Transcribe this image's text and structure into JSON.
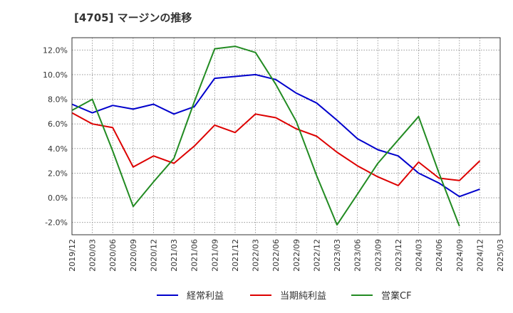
{
  "chart_data": {
    "type": "line",
    "title": "[4705]  マージンの推移",
    "x": [
      "2019/12",
      "2020/03",
      "2020/06",
      "2020/09",
      "2020/12",
      "2021/03",
      "2021/06",
      "2021/09",
      "2021/12",
      "2022/03",
      "2022/06",
      "2022/09",
      "2022/12",
      "2023/03",
      "2023/06",
      "2023/09",
      "2023/12",
      "2024/03",
      "2024/06",
      "2024/09",
      "2024/12",
      "2025/03"
    ],
    "ylim": [
      -3.0,
      13.0
    ],
    "yticks": [
      -2.0,
      0.0,
      2.0,
      4.0,
      6.0,
      8.0,
      10.0,
      12.0
    ],
    "ytick_labels": [
      "-2.0%",
      "0.0%",
      "2.0%",
      "4.0%",
      "6.0%",
      "8.0%",
      "10.0%",
      "12.0%"
    ],
    "grid": true,
    "legend_position": "bottom",
    "series": [
      {
        "name": "経常利益",
        "color": "#0000cc",
        "values": [
          7.6,
          6.9,
          7.5,
          7.2,
          7.6,
          6.8,
          7.4,
          9.7,
          9.85,
          10.0,
          9.6,
          8.5,
          7.7,
          6.3,
          4.8,
          3.9,
          3.4,
          2.0,
          1.2,
          0.1,
          0.7,
          null
        ]
      },
      {
        "name": "当期純利益",
        "color": "#dd0000",
        "values": [
          6.9,
          6.0,
          5.7,
          2.5,
          3.4,
          2.8,
          4.2,
          5.9,
          5.3,
          6.8,
          6.5,
          5.6,
          5.0,
          3.7,
          2.6,
          1.7,
          1.0,
          2.9,
          1.6,
          1.4,
          3.0,
          null
        ]
      },
      {
        "name": "営業CF",
        "color": "#228b22",
        "values": [
          7.1,
          8.0,
          3.8,
          -0.7,
          1.3,
          3.2,
          7.8,
          12.1,
          12.3,
          11.8,
          9.2,
          6.2,
          1.8,
          -2.2,
          0.3,
          2.8,
          4.7,
          6.6,
          2.0,
          -2.3,
          null,
          null
        ]
      }
    ]
  }
}
